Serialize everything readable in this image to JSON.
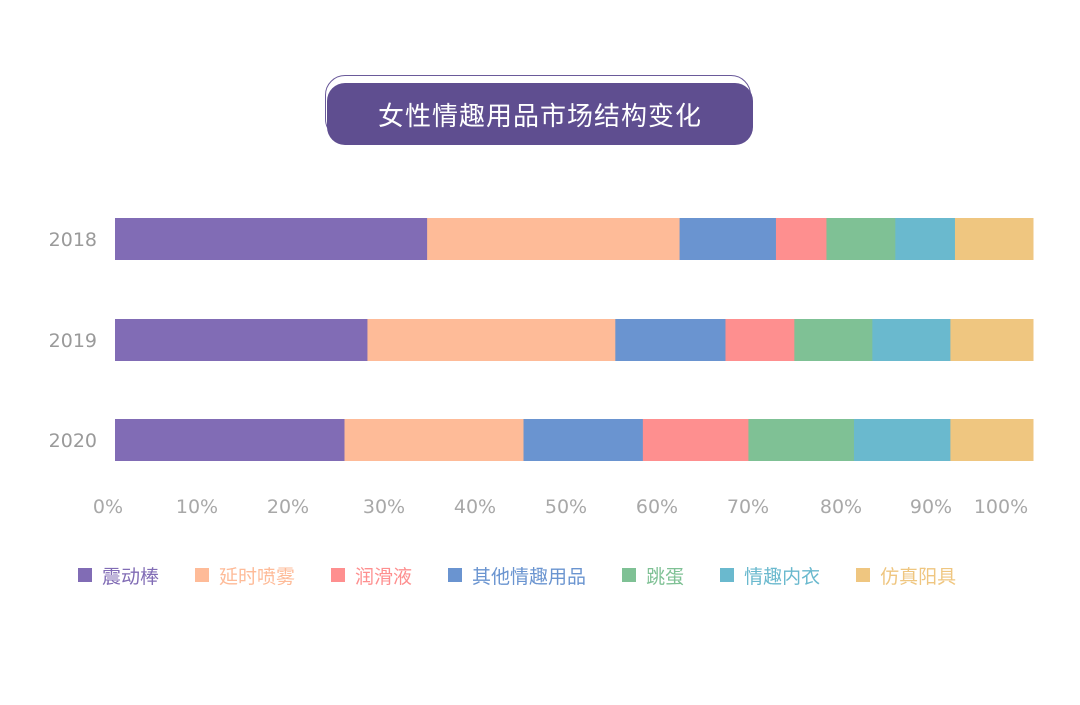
{
  "chart_data": {
    "type": "bar",
    "orientation": "horizontal",
    "stacked": true,
    "title": "女性情趣用品市场结构变化",
    "categories": [
      "2018",
      "2019",
      "2020"
    ],
    "xticks": [
      "0%",
      "10%",
      "20%",
      "30%",
      "40%",
      "50%",
      "60%",
      "70%",
      "80%",
      "90%",
      "100%"
    ],
    "xlim": [
      0,
      100
    ],
    "grid": false,
    "legend_position": "bottom",
    "legend_order": [
      "震动棒",
      "延时喷雾",
      "润滑液",
      "其他情趣用品",
      "跳蛋",
      "情趣内衣",
      "仿真阳具"
    ],
    "series": [
      {
        "name": "震动棒",
        "color": "#816cb5",
        "values": [
          34,
          27.5,
          25
        ]
      },
      {
        "name": "延时喷雾",
        "color": "#febb98",
        "values": [
          27.5,
          27,
          19.5
        ]
      },
      {
        "name": "其他情趣用品",
        "color": "#6a94d0",
        "values": [
          10.5,
          12,
          13
        ]
      },
      {
        "name": "润滑液",
        "color": "#fe8f8f",
        "values": [
          5.5,
          7.5,
          11.5
        ]
      },
      {
        "name": "跳蛋",
        "color": "#7fc195",
        "values": [
          7.5,
          8.5,
          11.5
        ]
      },
      {
        "name": "情趣内衣",
        "color": "#6ab9ce",
        "values": [
          6.5,
          8.5,
          10.5
        ]
      },
      {
        "name": "仿真阳具",
        "color": "#efc680",
        "values": [
          8.5,
          9,
          9
        ]
      }
    ]
  }
}
